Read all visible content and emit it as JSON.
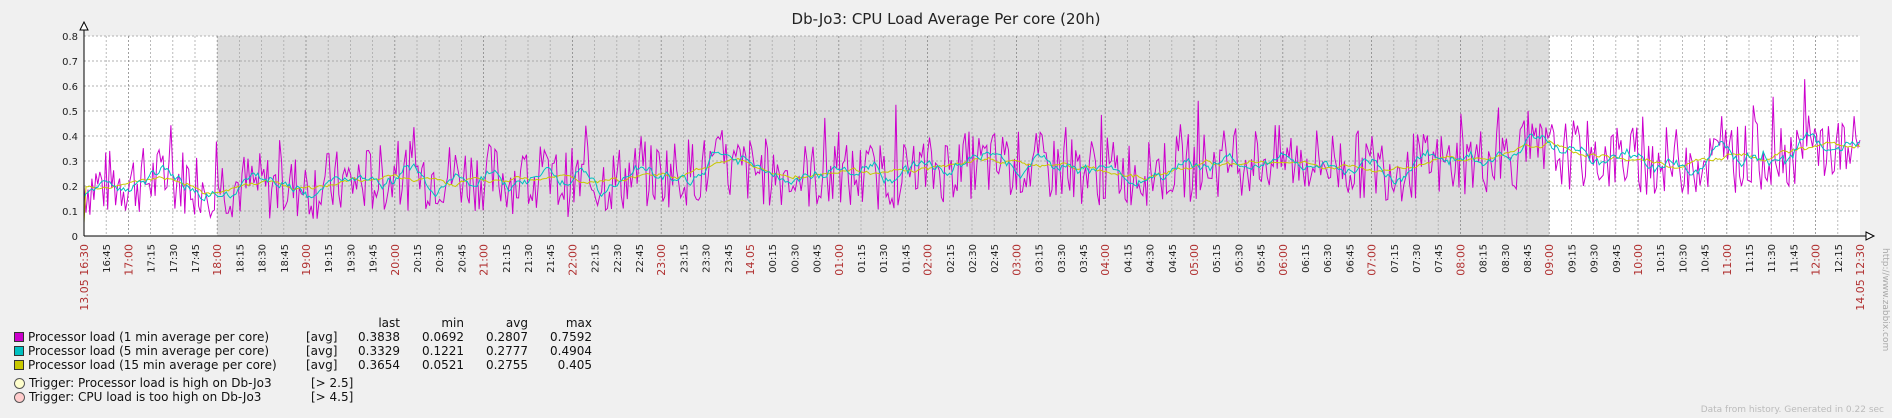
{
  "chart_data": {
    "type": "line",
    "title": "Db-Jo3: CPU Load Average Per core (20h)",
    "y_ticks": [
      "0",
      "0.1",
      "0.2",
      "0.3",
      "0.4",
      "0.5",
      "0.6",
      "0.7",
      "0.8"
    ],
    "ylim": [
      0,
      0.8
    ],
    "x_start_label": "13.05 16:30",
    "x_end_label": "14.05 12:30",
    "x_tick_labels": [
      "16:45",
      "17:00",
      "17:15",
      "17:30",
      "17:45",
      "18:00",
      "18:15",
      "18:30",
      "18:45",
      "19:00",
      "19:15",
      "19:30",
      "19:45",
      "20:00",
      "20:15",
      "20:30",
      "20:45",
      "21:00",
      "21:15",
      "21:30",
      "21:45",
      "22:00",
      "22:15",
      "22:30",
      "22:45",
      "23:00",
      "23:15",
      "23:30",
      "23:45",
      "14.05",
      "00:15",
      "00:30",
      "00:45",
      "01:00",
      "01:15",
      "01:30",
      "01:45",
      "02:00",
      "02:15",
      "02:30",
      "02:45",
      "03:00",
      "03:15",
      "03:30",
      "03:45",
      "04:00",
      "04:15",
      "04:30",
      "04:45",
      "05:00",
      "05:15",
      "05:30",
      "05:45",
      "06:00",
      "06:15",
      "06:30",
      "06:45",
      "07:00",
      "07:15",
      "07:30",
      "07:45",
      "08:00",
      "08:15",
      "08:30",
      "08:45",
      "09:00",
      "09:15",
      "09:30",
      "09:45",
      "10:00",
      "10:15",
      "10:30",
      "10:45",
      "11:00",
      "11:15",
      "11:30",
      "11:45",
      "12:00",
      "12:15"
    ],
    "x_tick_highlight": [
      "17:00",
      "18:00",
      "19:00",
      "20:00",
      "21:00",
      "22:00",
      "23:00",
      "14.05",
      "01:00",
      "02:00",
      "03:00",
      "04:00",
      "05:00",
      "06:00",
      "07:00",
      "08:00",
      "09:00",
      "10:00",
      "11:00",
      "12:00"
    ],
    "shaded_region": {
      "from": "18:00",
      "to": "09:00"
    },
    "series": [
      {
        "name": "Processor load (1 min average per core)",
        "color": "#cc00cc",
        "last": 0.3838,
        "min": 0.0692,
        "avg": 0.2807,
        "max": 0.7592
      },
      {
        "name": "Processor load (5 min average per core)",
        "color": "#00c0c0",
        "last": 0.3329,
        "min": 0.1221,
        "avg": 0.2777,
        "max": 0.4904
      },
      {
        "name": "Processor load (15 min average per core)",
        "color": "#c8c800",
        "last": 0.3654,
        "min": 0.0521,
        "avg": 0.2755,
        "max": 0.405
      }
    ],
    "grid": true
  },
  "legend": {
    "headers": {
      "last": "last",
      "min": "min",
      "avg": "avg",
      "max": "max"
    },
    "rows": [
      {
        "name": "Processor load (1 min average per core)",
        "agg": "[avg]",
        "last": "0.3838",
        "min": "0.0692",
        "avg": "0.2807",
        "max": "0.7592",
        "color": "#cc00cc"
      },
      {
        "name": "Processor load (5 min average per core)",
        "agg": "[avg]",
        "last": "0.3329",
        "min": "0.1221",
        "avg": "0.2777",
        "max": "0.4904",
        "color": "#00c0c0"
      },
      {
        "name": "Processor load (15 min average per core)",
        "agg": "[avg]",
        "last": "0.3654",
        "min": "0.0521",
        "avg": "0.2755",
        "max": "0.405",
        "color": "#c8c800"
      }
    ],
    "triggers": [
      {
        "name": "Trigger: Processor load is high on Db-Jo3",
        "threshold": "[> 2.5]",
        "color": "#ffffcc"
      },
      {
        "name": "Trigger: CPU load is too high on Db-Jo3",
        "threshold": "[> 4.5]",
        "color": "#ffcccc"
      }
    ]
  },
  "footer": {
    "note": "Data from history. Generated in 0.22 sec",
    "url": "http://www.zabbix.com"
  }
}
